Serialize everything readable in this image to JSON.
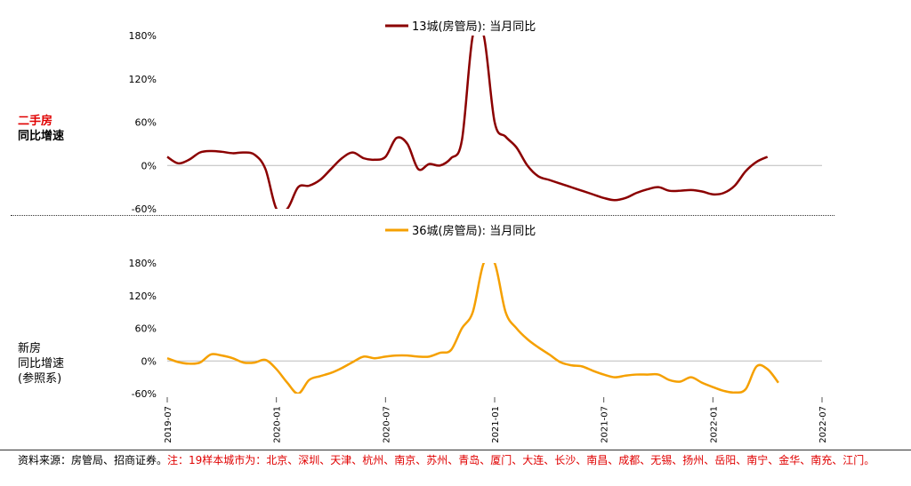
{
  "labels": {
    "top_line1": "二手房",
    "top_line1_color": "#e00000",
    "top_line2": "同比增速",
    "bottom_line1": "新房",
    "bottom_line2": "同比增速",
    "bottom_line3": "(参照系)"
  },
  "footer": {
    "source": "资料来源：房管局、招商证券。",
    "note": "注：19样本城市为：北京、深圳、天津、杭州、南京、苏州、青岛、厦门、大连、长沙、南昌、成都、无锡、扬州、岳阳、南宁、金华、南充、江门。",
    "note_color": "#e00000"
  },
  "chart_data": [
    {
      "type": "line",
      "legend": "top-center",
      "series": [
        {
          "name": "13城(房管局): 当月同比",
          "color": "#8b0000",
          "points": [
            [
              0,
              12
            ],
            [
              1,
              3
            ],
            [
              2,
              8
            ],
            [
              3,
              18
            ],
            [
              4,
              20
            ],
            [
              5,
              19
            ],
            [
              6,
              17
            ],
            [
              7,
              18
            ],
            [
              8,
              15
            ],
            [
              9,
              -5
            ],
            [
              10,
              -60
            ],
            [
              11,
              -60
            ],
            [
              12,
              -30
            ],
            [
              13,
              -28
            ],
            [
              14,
              -20
            ],
            [
              15,
              -5
            ],
            [
              16,
              10
            ],
            [
              17,
              18
            ],
            [
              18,
              10
            ],
            [
              19,
              8
            ],
            [
              20,
              12
            ],
            [
              21,
              38
            ],
            [
              22,
              30
            ],
            [
              23,
              -5
            ],
            [
              24,
              2
            ],
            [
              25,
              0
            ],
            [
              26,
              10
            ],
            [
              27,
              35
            ],
            [
              28,
              180
            ],
            [
              29,
              180
            ],
            [
              30,
              60
            ],
            [
              31,
              40
            ],
            [
              32,
              25
            ],
            [
              33,
              0
            ],
            [
              34,
              -15
            ],
            [
              35,
              -20
            ],
            [
              36,
              -25
            ],
            [
              37,
              -30
            ],
            [
              38,
              -35
            ],
            [
              39,
              -40
            ],
            [
              40,
              -45
            ],
            [
              41,
              -48
            ],
            [
              42,
              -45
            ],
            [
              43,
              -38
            ],
            [
              44,
              -33
            ],
            [
              45,
              -30
            ],
            [
              46,
              -35
            ],
            [
              47,
              -35
            ],
            [
              48,
              -34
            ],
            [
              49,
              -36
            ],
            [
              50,
              -40
            ],
            [
              51,
              -38
            ],
            [
              52,
              -28
            ],
            [
              53,
              -8
            ],
            [
              54,
              5
            ],
            [
              55,
              12
            ]
          ]
        }
      ],
      "yticks": [
        "180%",
        "120%",
        "60%",
        "0%",
        "-60%"
      ],
      "ytick_values": [
        180,
        120,
        60,
        0,
        -60
      ],
      "ylim": [
        -60,
        180
      ]
    },
    {
      "type": "line",
      "legend": "top-center",
      "series": [
        {
          "name": "36城(房管局): 当月同比",
          "color": "#f5a000",
          "points": [
            [
              0,
              5
            ],
            [
              1,
              -2
            ],
            [
              2,
              -5
            ],
            [
              3,
              -3
            ],
            [
              4,
              12
            ],
            [
              5,
              10
            ],
            [
              6,
              5
            ],
            [
              7,
              -3
            ],
            [
              8,
              -3
            ],
            [
              9,
              2
            ],
            [
              10,
              -15
            ],
            [
              11,
              -40
            ],
            [
              12,
              -60
            ],
            [
              13,
              -35
            ],
            [
              14,
              -28
            ],
            [
              15,
              -22
            ],
            [
              16,
              -13
            ],
            [
              17,
              -2
            ],
            [
              18,
              8
            ],
            [
              19,
              5
            ],
            [
              20,
              8
            ],
            [
              21,
              10
            ],
            [
              22,
              10
            ],
            [
              23,
              8
            ],
            [
              24,
              8
            ],
            [
              25,
              15
            ],
            [
              26,
              20
            ],
            [
              27,
              60
            ],
            [
              28,
              90
            ],
            [
              29,
              180
            ],
            [
              30,
              180
            ],
            [
              31,
              90
            ],
            [
              32,
              60
            ],
            [
              33,
              40
            ],
            [
              34,
              25
            ],
            [
              35,
              12
            ],
            [
              36,
              -2
            ],
            [
              37,
              -8
            ],
            [
              38,
              -10
            ],
            [
              39,
              -18
            ],
            [
              40,
              -25
            ],
            [
              41,
              -30
            ],
            [
              42,
              -27
            ],
            [
              43,
              -25
            ],
            [
              44,
              -25
            ],
            [
              45,
              -25
            ],
            [
              46,
              -35
            ],
            [
              47,
              -38
            ],
            [
              48,
              -30
            ],
            [
              49,
              -40
            ],
            [
              50,
              -48
            ],
            [
              51,
              -55
            ],
            [
              52,
              -58
            ],
            [
              53,
              -52
            ],
            [
              54,
              -10
            ],
            [
              55,
              -15
            ],
            [
              56,
              -40
            ]
          ]
        }
      ],
      "yticks": [
        "180%",
        "120%",
        "60%",
        "0%",
        "-60%"
      ],
      "ytick_values": [
        180,
        120,
        60,
        0,
        -60
      ],
      "ylim": [
        -60,
        180
      ],
      "xticks": [
        "2019-07",
        "2020-01",
        "2020-07",
        "2021-01",
        "2021-07",
        "2022-01",
        "2022-07"
      ],
      "xtick_index": [
        0,
        10,
        20,
        30,
        40,
        50,
        60
      ]
    }
  ]
}
